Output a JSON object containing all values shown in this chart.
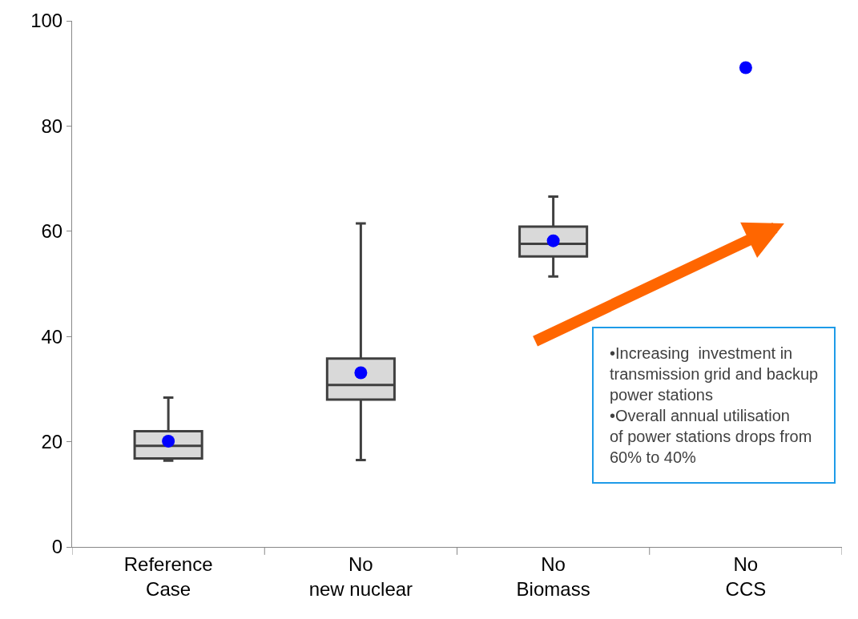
{
  "chart_data": {
    "type": "box",
    "categories": [
      "Reference Case",
      "No new nuclear",
      "No Biomass",
      "No CCS"
    ],
    "series": [
      {
        "color": "#404040",
        "boxes": [
          {
            "low": 16.4,
            "q1": 16.8,
            "median": 19.2,
            "q3": 22.0,
            "high": 28.4
          },
          {
            "low": 16.5,
            "q1": 28.0,
            "median": 30.8,
            "q3": 35.8,
            "high": 61.5
          },
          {
            "low": 51.4,
            "q1": 55.2,
            "median": 57.6,
            "q3": 60.9,
            "high": 66.6
          },
          null
        ]
      },
      {
        "type": "scatter",
        "color": "#0000ff",
        "x": [
          "Reference Case",
          "No new nuclear",
          "No Biomass",
          "No CCS"
        ],
        "values": [
          20.1,
          33.1,
          58.2,
          91.1
        ]
      }
    ],
    "ylim": [
      0,
      100
    ],
    "yticks": [
      0,
      20,
      40,
      60,
      80,
      100
    ],
    "marker": "circle",
    "annotations": [
      "•Increasing  investment in transmission grid and backup power stations",
      "•Overall annual utilisation of power stations drops from 60% to 40%"
    ]
  }
}
